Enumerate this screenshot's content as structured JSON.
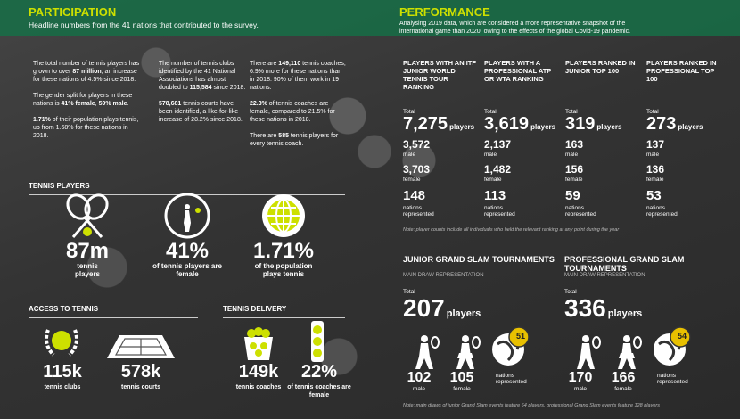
{
  "participation": {
    "title": "PARTICIPATION",
    "subtitle": "Headline numbers from the 41 nations that contributed to the survey.",
    "columns": [
      [
        [
          "The total number of tennis players has grown to over ",
          "87 million",
          ", an increase for these nations of 4.5% since 2018."
        ],
        [
          "The gender split for players in these nations is ",
          "41% female",
          ", ",
          "59% male",
          "."
        ],
        [
          "1.71%",
          " of their population plays tennis, up from 1.68% for these nations in 2018."
        ]
      ],
      [
        [
          "The number of tennis clubs identified by the 41 National Associations has almost doubled to ",
          "115,584",
          " since 2018."
        ],
        [
          "578,681",
          " tennis courts have been identified, a like-for-like increase of 28.2% since 2018."
        ]
      ],
      [
        [
          "There are ",
          "149,110",
          " tennis coaches, 6.9% more for these nations than in 2018. 90% of them work in 19 nations."
        ],
        [
          "22.3%",
          " of tennis coaches are female, compared to 21.5% for these nations in 2018."
        ],
        [
          "There are ",
          "585",
          " tennis players for every tennis coach."
        ]
      ]
    ]
  },
  "tennis_players": {
    "title": "TENNIS PLAYERS",
    "stats": [
      {
        "value": "87m",
        "label": "tennis players"
      },
      {
        "value": "41%",
        "label": "of tennis players are female"
      },
      {
        "value": "1.71%",
        "label": "of the population plays tennis"
      }
    ]
  },
  "access": {
    "title": "ACCESS TO TENNIS",
    "stats": [
      {
        "value": "115k",
        "label": "tennis clubs"
      },
      {
        "value": "578k",
        "label": "tennis courts"
      }
    ]
  },
  "delivery": {
    "title": "TENNIS DELIVERY",
    "stats": [
      {
        "value": "149k",
        "label": "tennis coaches"
      },
      {
        "value": "22%",
        "label": "of tennis coaches are female"
      }
    ]
  },
  "performance": {
    "title": "PERFORMANCE",
    "description": "Analysing 2019 data, which are considered a more representative snapshot of the international game than 2020, owing to the effects of the global Covid-19 pandemic.",
    "columns": [
      {
        "heading": "PLAYERS WITH AN ITF JUNIOR WORLD TENNIS TOUR RANKING",
        "total_label": "Total",
        "total": "7,275",
        "unit": "players",
        "male": "3,572",
        "male_label": "male",
        "female": "3,703",
        "female_label": "female",
        "nations": 148,
        "nations_label": "nations represented"
      },
      {
        "heading": "PLAYERS WITH A PROFESSIONAL ATP OR WTA RANKING",
        "total_label": "Total",
        "total": "3,619",
        "unit": "players",
        "male": "2,137",
        "male_label": "male",
        "female": "1,482",
        "female_label": "female",
        "nations": 113,
        "nations_label": "nations represented"
      },
      {
        "heading": "PLAYERS RANKED IN JUNIOR TOP 100",
        "total_label": "Total",
        "total": 319,
        "unit": "players",
        "male": 163,
        "male_label": "male",
        "female": 156,
        "female_label": "female",
        "nations": 59,
        "nations_label": "nations represented"
      },
      {
        "heading": "PLAYERS RANKED IN PROFESSIONAL TOP 100",
        "total_label": "Total",
        "total": 273,
        "unit": "players",
        "male": 137,
        "male_label": "male",
        "female": 136,
        "female_label": "female",
        "nations": 53,
        "nations_label": "nations represented"
      }
    ],
    "note": "Note: player counts include all individuals who held the relevant ranking at any point during the year"
  },
  "grand_slams": {
    "events": [
      {
        "title": "JUNIOR GRAND SLAM TOURNAMENTS",
        "subtitle": "MAIN DRAW REPRESENTATION",
        "total_label": "Total",
        "total": 207,
        "unit": "players",
        "male": 102,
        "male_label": "male",
        "female": 105,
        "female_label": "female",
        "nations": 51,
        "nations_label": "nations represented"
      },
      {
        "title": "PROFESSIONAL GRAND SLAM TOURNAMENTS",
        "subtitle": "MAIN DRAW REPRESENTATION",
        "total_label": "Total",
        "total": 336,
        "unit": "players",
        "male": 170,
        "male_label": "male",
        "female": 166,
        "female_label": "female",
        "nations": 54,
        "nations_label": "nations represented"
      }
    ],
    "note": "Note: main draws of junior Grand Slam events feature 64 players, professional Grand Slam events feature 128 players"
  }
}
